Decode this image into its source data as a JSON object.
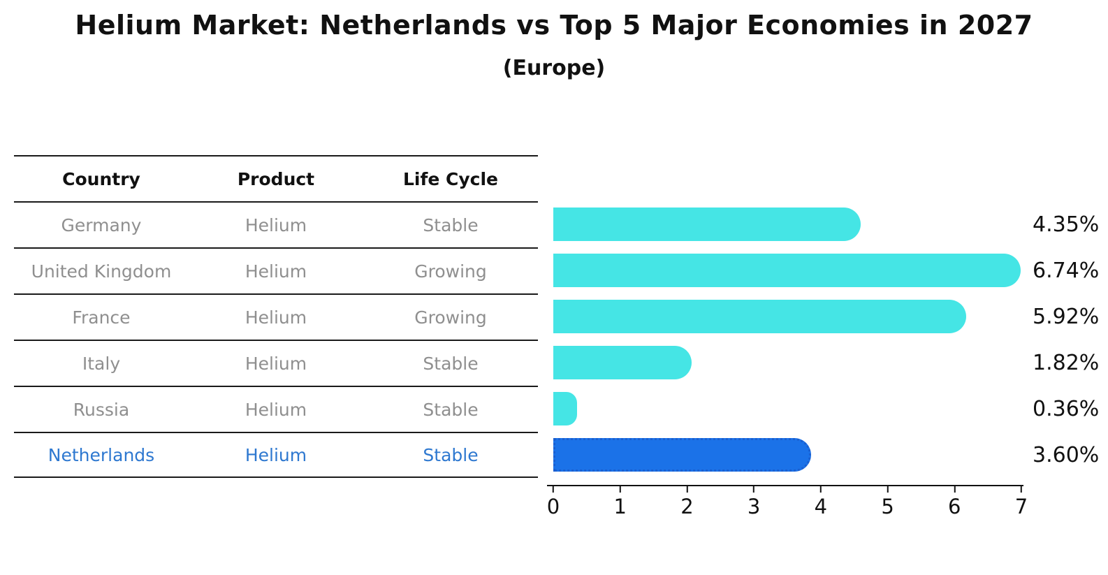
{
  "title": "Helium Market: Netherlands vs Top 5 Major Economies in 2027",
  "subtitle": "(Europe)",
  "colors": {
    "bar_default": "#45E5E5",
    "bar_highlight": "#1B72E8",
    "bar_highlight_edge": "#1A5FD0",
    "highlight_text": "#2E78D0",
    "table_text": "#8F8F8F",
    "heading_text": "#111111"
  },
  "table": {
    "headers": [
      "Country",
      "Product",
      "Life Cycle"
    ],
    "rows": [
      {
        "country": "Germany",
        "product": "Helium",
        "life_cycle": "Stable"
      },
      {
        "country": "United Kingdom",
        "product": "Helium",
        "life_cycle": "Growing"
      },
      {
        "country": "France",
        "product": "Helium",
        "life_cycle": "Growing"
      },
      {
        "country": "Italy",
        "product": "Helium",
        "life_cycle": "Stable"
      },
      {
        "country": "Russia",
        "product": "Helium",
        "life_cycle": "Stable"
      },
      {
        "country": "Netherlands",
        "product": "Helium",
        "life_cycle": "Stable"
      }
    ],
    "highlight_row": "Netherlands"
  },
  "chart_data": {
    "type": "bar",
    "orientation": "horizontal",
    "title": "Helium Market: Netherlands vs Top 5 Major Economies in 2027",
    "subtitle": "(Europe)",
    "categories": [
      "Germany",
      "United Kingdom",
      "France",
      "Italy",
      "Russia",
      "Netherlands"
    ],
    "values": [
      4.35,
      6.74,
      5.92,
      1.82,
      0.36,
      3.6
    ],
    "value_labels": [
      "4.35%",
      "6.74%",
      "5.92%",
      "1.82%",
      "0.36%",
      "3.60%"
    ],
    "unit": "%",
    "xlim": [
      0,
      7
    ],
    "xticks": [
      "0",
      "1",
      "2",
      "3",
      "4",
      "5",
      "6",
      "7"
    ],
    "highlight_index": 5,
    "grid": false,
    "legend": false
  }
}
